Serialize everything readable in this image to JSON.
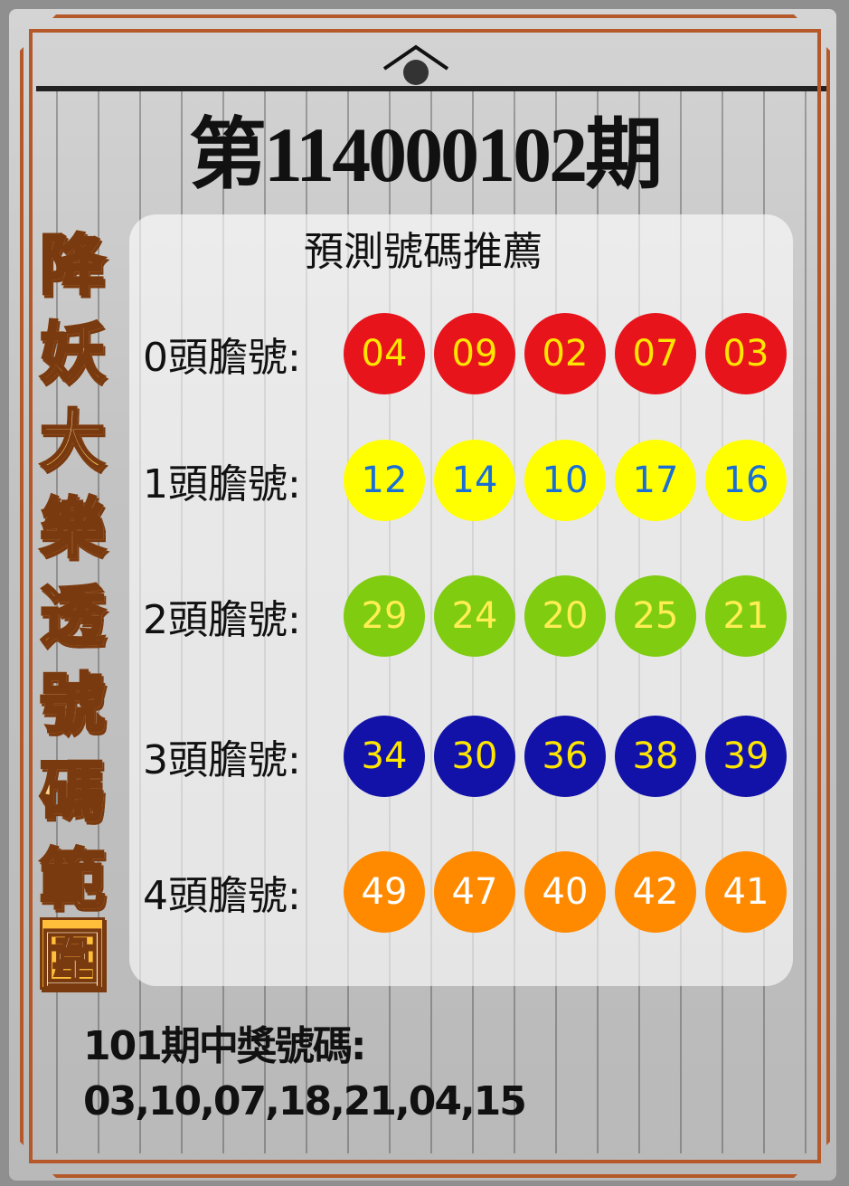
{
  "title": "第114000102期",
  "subtitle": "預測號碼推薦",
  "side_title": [
    "降",
    "妖",
    "大",
    "樂",
    "透",
    "號",
    "碼",
    "範",
    "圍"
  ],
  "rows": [
    {
      "label": "0頭膽號:",
      "numbers": [
        "04",
        "09",
        "02",
        "07",
        "03"
      ],
      "ball_color": "#e8141c",
      "text_color": "#ffe600"
    },
    {
      "label": "1頭膽號:",
      "numbers": [
        "12",
        "14",
        "10",
        "17",
        "16"
      ],
      "ball_color": "#ffff00",
      "text_color": "#1a6fd6"
    },
    {
      "label": "2頭膽號:",
      "numbers": [
        "29",
        "24",
        "20",
        "25",
        "21"
      ],
      "ball_color": "#7fcc10",
      "text_color": "#ffee55"
    },
    {
      "label": "3頭膽號:",
      "numbers": [
        "34",
        "30",
        "36",
        "38",
        "39"
      ],
      "ball_color": "#1212a8",
      "text_color": "#ffe600"
    },
    {
      "label": "4頭膽號:",
      "numbers": [
        "49",
        "47",
        "40",
        "42",
        "41"
      ],
      "ball_color": "#ff8a00",
      "text_color": "#ffffff"
    }
  ],
  "previous": {
    "label": "101期中獎號碼:",
    "numbers": "03,10,07,18,21,04,15"
  }
}
